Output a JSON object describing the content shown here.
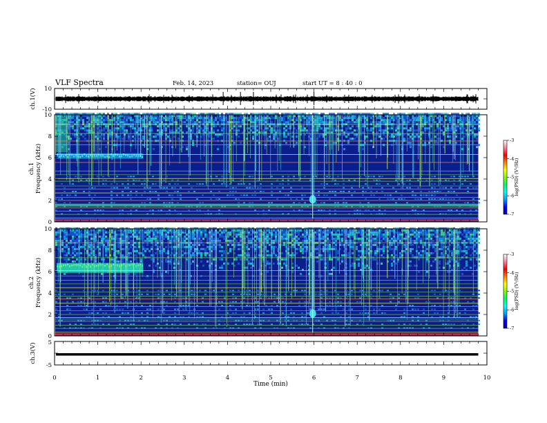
{
  "header": {
    "title": "VLF Spectra",
    "date": "Feb. 14, 2023",
    "station": "station= OUJ",
    "start_ut": "start UT =  8 : 40 : 0"
  },
  "colors": {
    "ch1_trace": "#000000",
    "ch3_trace": "#000000",
    "spectrogram_background": "#0a1f8c",
    "spectrogram_high": "#00ffe0",
    "line_emission": "#7fd03a"
  },
  "colorbar_stops": [
    "#0000a0",
    "#0000ff",
    "#00a0ff",
    "#00ffff",
    "#00ff60",
    "#80ff00",
    "#ffff00",
    "#ff8000",
    "#ff0000",
    "#ff80a0",
    "#ffffff"
  ],
  "chart_data": [
    {
      "type": "line",
      "panel": "ch1",
      "ylabel": "ch.1(V)",
      "ylim": [
        -10,
        10
      ],
      "ytick_labels": [
        "10",
        "-10"
      ],
      "baseline_value": 0,
      "xlim": [
        0,
        10
      ]
    },
    {
      "type": "heatmap",
      "panel": "ch1-spectrogram",
      "ylabel_prefix": "ch.1",
      "ylabel": "Frequency (kHz)",
      "ylim": [
        0,
        10
      ],
      "ytick_labels": [
        "0",
        "2",
        "4",
        "6",
        "8",
        "10"
      ],
      "xlim": [
        0,
        10
      ],
      "colorbar": {
        "label": "log(PSD) (V²/Hz)",
        "range": [
          -7,
          -3
        ],
        "tick_labels": [
          "-3",
          "-4",
          "-5",
          "-6",
          "-7"
        ]
      }
    },
    {
      "type": "heatmap",
      "panel": "ch2-spectrogram",
      "ylabel_prefix": "ch.2",
      "ylabel": "Frequency (kHz)",
      "ylim": [
        0,
        10
      ],
      "ytick_labels": [
        "0",
        "2",
        "4",
        "6",
        "8",
        "10"
      ],
      "xlim": [
        0,
        10
      ],
      "colorbar": {
        "label": "log(PSD) (V²/Hz)",
        "range": [
          -7,
          -3
        ],
        "tick_labels": [
          "-3",
          "-4",
          "-5",
          "-6",
          "-7"
        ]
      }
    },
    {
      "type": "line",
      "panel": "ch3",
      "ylabel": "ch.3(V)",
      "ylim": [
        -5,
        5
      ],
      "ytick_labels": [
        "5",
        "-5"
      ],
      "baseline_value": -0.5,
      "xlim": [
        0,
        10
      ]
    }
  ],
  "xaxis": {
    "label": "Time (min)",
    "tick_labels": [
      "0",
      "1",
      "2",
      "3",
      "4",
      "5",
      "6",
      "7",
      "8",
      "9",
      "10"
    ],
    "range": [
      0,
      10
    ]
  }
}
